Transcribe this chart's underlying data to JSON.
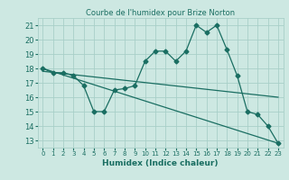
{
  "title": "Courbe de l'humidex pour Brize Norton",
  "xlabel": "Humidex (Indice chaleur)",
  "xlim": [
    -0.5,
    23.5
  ],
  "ylim": [
    12.5,
    21.5
  ],
  "yticks": [
    13,
    14,
    15,
    16,
    17,
    18,
    19,
    20,
    21
  ],
  "xticks": [
    0,
    1,
    2,
    3,
    4,
    5,
    6,
    7,
    8,
    9,
    10,
    11,
    12,
    13,
    14,
    15,
    16,
    17,
    18,
    19,
    20,
    21,
    22,
    23
  ],
  "bg_color": "#cde8e2",
  "line_color": "#1a6e62",
  "grid_color": "#a8cfc8",
  "line1_x": [
    0,
    1,
    2,
    3,
    4,
    5,
    6,
    7,
    8,
    9,
    10,
    11,
    12,
    13,
    14,
    15,
    16,
    17,
    18,
    19,
    20,
    21,
    22,
    23
  ],
  "line1_y": [
    18.0,
    17.7,
    17.7,
    17.5,
    16.8,
    15.0,
    15.0,
    16.5,
    16.6,
    16.8,
    18.5,
    19.2,
    19.2,
    18.5,
    19.2,
    21.0,
    20.5,
    21.0,
    19.3,
    17.5,
    15.0,
    14.8,
    14.0,
    12.8
  ],
  "line2_x": [
    0,
    23
  ],
  "line2_y": [
    18.0,
    12.8
  ],
  "line3_x": [
    0,
    23
  ],
  "line3_y": [
    17.8,
    16.0
  ]
}
